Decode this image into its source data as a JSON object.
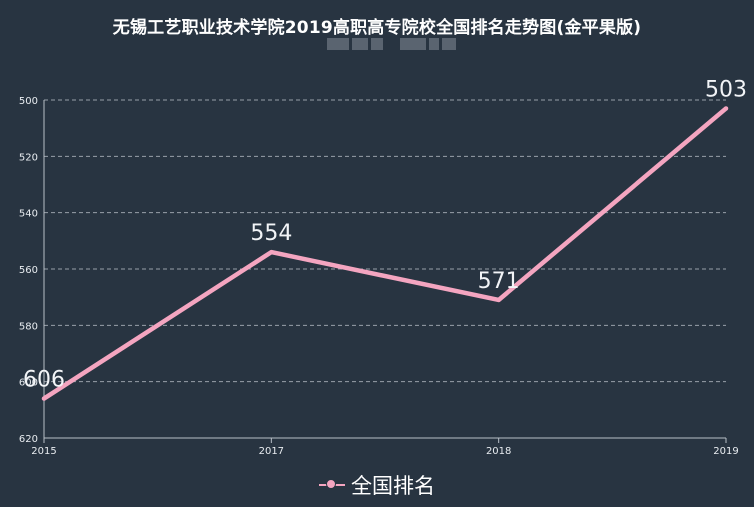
{
  "title": "无锡工艺职业技术学院2019高职高专院校全国排名走势图(金平果版)",
  "chart_data": {
    "type": "line",
    "x": [
      "2015",
      "2017",
      "2018",
      "2019"
    ],
    "series": [
      {
        "name": "全国排名",
        "values": [
          606,
          554,
          571,
          503
        ],
        "color": "#f4a5c0"
      }
    ],
    "y_ticks": [
      "500",
      "520",
      "540",
      "560",
      "580",
      "600",
      "620"
    ],
    "ylim": [
      500,
      620
    ],
    "y_inverted": true,
    "grid": "horizontal dashed",
    "legend_position": "bottom-center"
  },
  "legend": {
    "label": "全国排名"
  }
}
